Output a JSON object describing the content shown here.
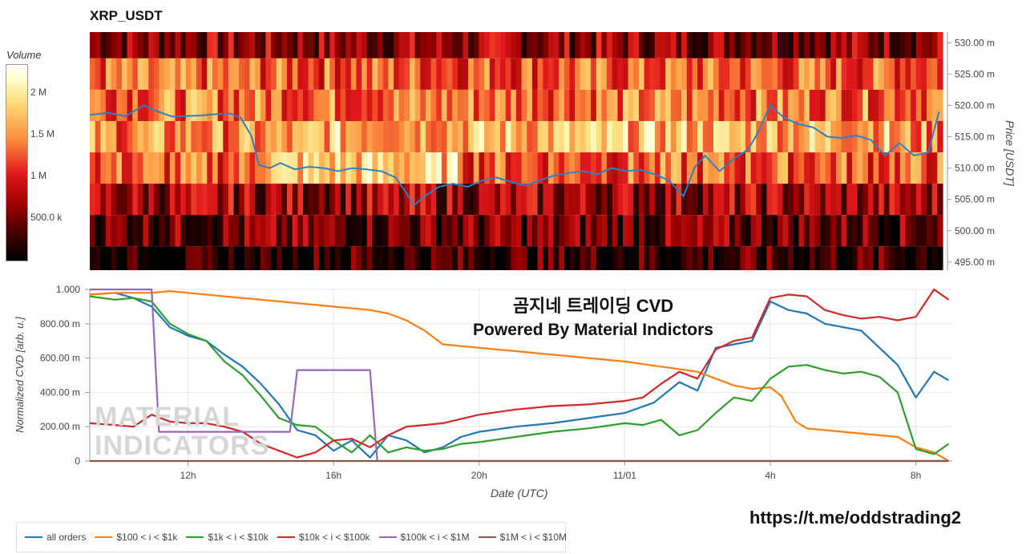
{
  "top_title": "XRP_USDT",
  "volume_label": "Volume",
  "volume_ticks": [
    "2 M",
    "1.5 M",
    "1 M",
    "500.0 k"
  ],
  "overlay_title": "곰지네 트레이딩 CVD",
  "overlay_subtitle": "Powered By Material Indictors",
  "url": "https://t.me/oddstrading2",
  "watermark_line1": "MATERIAL",
  "watermark_line2": "INDICATORS",
  "legend": [
    {
      "label": "all orders",
      "color": "#1f77b4"
    },
    {
      "label": "$100 < i < $1k",
      "color": "#ff7f0e"
    },
    {
      "label": "$1k < i < $10k",
      "color": "#2ca02c"
    },
    {
      "label": "$10k < i < $100k",
      "color": "#d62728"
    },
    {
      "label": "$100k < i < $1M",
      "color": "#9467bd"
    },
    {
      "label": "$1M < i < $10M",
      "color": "#8c564b"
    }
  ],
  "chart_data": [
    {
      "type": "heatmap",
      "title": "XRP_USDT",
      "ylabel": "Price [USDT]",
      "y_ticks": [
        "530.00 m",
        "525.00 m",
        "520.00 m",
        "515.00 m",
        "510.00 m",
        "505.00 m",
        "500.00 m",
        "495.00 m"
      ],
      "ylim": [
        0.4937,
        0.5317
      ],
      "price_bins": [
        0.53,
        0.525,
        0.52,
        0.515,
        0.51,
        0.505,
        0.5,
        0.495
      ],
      "colorbar": {
        "label": "Volume",
        "ticks": [
          "2 M",
          "1.5 M",
          "1 M",
          "500.0 k"
        ],
        "range": [
          0,
          2400000
        ]
      },
      "price_series": {
        "color": "#2f7fc1",
        "x_hours": [
          9.3,
          9.8,
          10.3,
          10.8,
          11.2,
          11.6,
          12.0,
          12.4,
          12.8,
          13.2,
          13.5,
          13.8,
          14.0,
          14.3,
          14.6,
          15.0,
          15.4,
          15.8,
          16.2,
          16.6,
          17.0,
          17.4,
          17.8,
          18.1,
          18.3,
          18.6,
          19.0,
          19.4,
          19.8,
          20.2,
          20.6,
          21.0,
          21.4,
          21.8,
          22.2,
          22.6,
          23.0,
          23.4,
          23.8,
          24.2,
          24.6,
          25.0,
          25.4,
          25.8,
          26.1,
          26.4,
          26.8,
          27.2,
          27.6,
          27.9,
          28.2,
          28.6,
          29.0,
          29.4,
          29.8,
          30.2,
          30.6,
          31.0,
          31.4,
          31.8,
          32.2,
          32.6,
          32.9
        ],
        "price": [
          0.5185,
          0.5188,
          0.5183,
          0.52,
          0.519,
          0.5182,
          0.5183,
          0.5184,
          0.5186,
          0.5187,
          0.518,
          0.515,
          0.5105,
          0.51,
          0.5108,
          0.5098,
          0.5102,
          0.51,
          0.5095,
          0.51,
          0.5098,
          0.5095,
          0.5085,
          0.506,
          0.504,
          0.5055,
          0.507,
          0.5075,
          0.507,
          0.508,
          0.5085,
          0.5078,
          0.5072,
          0.508,
          0.5088,
          0.5092,
          0.5095,
          0.509,
          0.51,
          0.5095,
          0.5097,
          0.509,
          0.508,
          0.5055,
          0.51,
          0.512,
          0.5095,
          0.5115,
          0.513,
          0.516,
          0.52,
          0.518,
          0.517,
          0.5165,
          0.515,
          0.5148,
          0.5152,
          0.5145,
          0.512,
          0.514,
          0.512,
          0.5125,
          0.519
        ]
      }
    },
    {
      "type": "line",
      "xlabel": "Date (UTC)",
      "ylabel": "Normalized CVD [arb. u.]",
      "x_ticks": [
        "12h",
        "16h",
        "20h",
        "11/01",
        "4h",
        "8h"
      ],
      "x_tick_hours": [
        12,
        16,
        20,
        24,
        28,
        32
      ],
      "xlim": [
        9.3,
        33.0
      ],
      "y_ticks": [
        "1.000",
        "800.00 m",
        "600.00 m",
        "400.00 m",
        "200.00 m",
        "0"
      ],
      "ylim": [
        0,
        1.0
      ],
      "series": [
        {
          "name": "all orders",
          "color": "#1f77b4",
          "x": [
            9.3,
            10.0,
            10.5,
            11.0,
            11.5,
            12.0,
            12.5,
            13.0,
            13.5,
            14.0,
            14.5,
            15.0,
            15.5,
            16.0,
            16.5,
            17.0,
            17.5,
            18.0,
            18.5,
            19.0,
            19.5,
            20.0,
            21.0,
            22.0,
            23.0,
            24.0,
            24.8,
            25.5,
            26.0,
            26.5,
            27.0,
            27.5,
            28.0,
            28.5,
            29.0,
            29.5,
            30.0,
            30.5,
            31.0,
            31.5,
            32.0,
            32.5,
            32.9
          ],
          "y": [
            0.97,
            0.98,
            0.95,
            0.9,
            0.78,
            0.73,
            0.7,
            0.62,
            0.55,
            0.45,
            0.33,
            0.18,
            0.15,
            0.06,
            0.12,
            0.02,
            0.15,
            0.12,
            0.05,
            0.08,
            0.14,
            0.17,
            0.2,
            0.22,
            0.25,
            0.28,
            0.34,
            0.46,
            0.41,
            0.66,
            0.68,
            0.7,
            0.93,
            0.88,
            0.86,
            0.8,
            0.78,
            0.76,
            0.66,
            0.56,
            0.37,
            0.52,
            0.47
          ]
        },
        {
          "name": "$100 < i < $1k",
          "color": "#ff7f0e",
          "x": [
            9.3,
            10.0,
            11.0,
            11.5,
            12.0,
            13.0,
            14.0,
            15.0,
            16.0,
            17.0,
            17.5,
            18.0,
            18.5,
            19.0,
            20.0,
            21.0,
            22.0,
            23.0,
            24.0,
            25.0,
            26.0,
            27.0,
            27.5,
            28.0,
            28.3,
            28.7,
            29.0,
            30.0,
            31.0,
            31.5,
            32.0,
            32.5,
            32.9
          ],
          "y": [
            0.97,
            0.98,
            0.98,
            0.99,
            0.98,
            0.96,
            0.94,
            0.92,
            0.9,
            0.88,
            0.86,
            0.82,
            0.76,
            0.68,
            0.66,
            0.64,
            0.62,
            0.6,
            0.58,
            0.55,
            0.52,
            0.44,
            0.42,
            0.43,
            0.38,
            0.23,
            0.19,
            0.17,
            0.15,
            0.14,
            0.08,
            0.05,
            0.0
          ]
        },
        {
          "name": "$1k < i < $10k",
          "color": "#2ca02c",
          "x": [
            9.3,
            10.0,
            10.5,
            11.0,
            11.5,
            12.0,
            12.5,
            13.0,
            13.5,
            14.0,
            14.5,
            15.0,
            15.5,
            16.0,
            16.5,
            17.0,
            17.5,
            18.0,
            18.5,
            19.0,
            19.5,
            20.0,
            21.0,
            22.0,
            23.0,
            24.0,
            24.5,
            25.0,
            25.5,
            26.0,
            26.5,
            27.0,
            27.5,
            28.0,
            28.5,
            29.0,
            29.5,
            30.0,
            30.5,
            31.0,
            31.5,
            32.0,
            32.5,
            32.9
          ],
          "y": [
            0.96,
            0.94,
            0.95,
            0.93,
            0.8,
            0.74,
            0.7,
            0.58,
            0.5,
            0.38,
            0.25,
            0.21,
            0.2,
            0.12,
            0.05,
            0.15,
            0.05,
            0.08,
            0.06,
            0.07,
            0.1,
            0.11,
            0.14,
            0.17,
            0.19,
            0.22,
            0.21,
            0.24,
            0.15,
            0.18,
            0.28,
            0.37,
            0.35,
            0.48,
            0.55,
            0.56,
            0.53,
            0.51,
            0.52,
            0.49,
            0.4,
            0.07,
            0.04,
            0.1
          ]
        },
        {
          "name": "$10k < i < $100k",
          "color": "#d62728",
          "x": [
            9.3,
            10.0,
            10.5,
            11.0,
            11.5,
            12.0,
            12.5,
            13.0,
            13.5,
            14.0,
            14.5,
            15.0,
            15.5,
            16.0,
            16.5,
            17.0,
            17.5,
            18.0,
            18.5,
            19.0,
            20.0,
            21.0,
            22.0,
            23.0,
            24.0,
            24.5,
            25.0,
            25.5,
            26.0,
            26.5,
            27.0,
            27.5,
            28.0,
            28.5,
            29.0,
            29.5,
            30.0,
            30.5,
            31.0,
            31.5,
            32.0,
            32.5,
            32.9
          ],
          "y": [
            0.22,
            0.21,
            0.2,
            0.27,
            0.23,
            0.22,
            0.22,
            0.2,
            0.17,
            0.1,
            0.06,
            0.02,
            0.05,
            0.12,
            0.13,
            0.08,
            0.15,
            0.2,
            0.21,
            0.22,
            0.27,
            0.3,
            0.32,
            0.33,
            0.35,
            0.37,
            0.45,
            0.52,
            0.48,
            0.65,
            0.7,
            0.72,
            0.95,
            0.97,
            0.96,
            0.88,
            0.85,
            0.83,
            0.84,
            0.82,
            0.84,
            1.0,
            0.94
          ]
        },
        {
          "name": "$100k < i < $1M",
          "color": "#9467bd",
          "x": [
            9.3,
            11.0,
            11.2,
            14.8,
            15.0,
            17.0,
            17.2,
            32.9
          ],
          "y": [
            1.0,
            1.0,
            0.17,
            0.17,
            0.53,
            0.53,
            0.0,
            0.0
          ]
        },
        {
          "name": "$1M < i < $10M",
          "color": "#8c564b",
          "x": [
            9.3,
            32.9
          ],
          "y": [
            0.0,
            0.0
          ]
        }
      ]
    }
  ]
}
